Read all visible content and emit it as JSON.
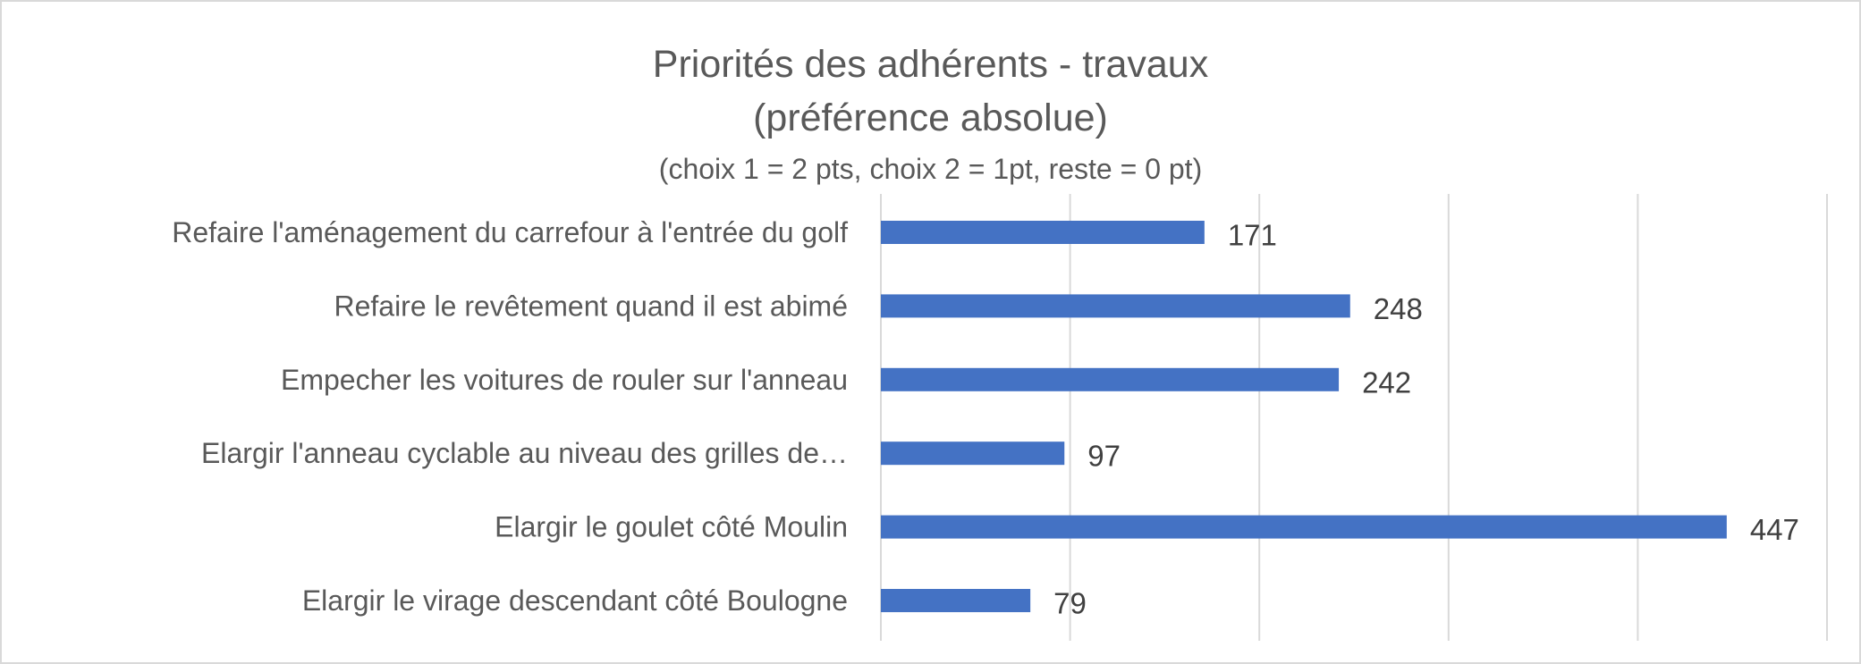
{
  "chart_data": {
    "type": "bar",
    "orientation": "horizontal",
    "title_lines": [
      "Priorités des adhérents - travaux",
      "(préférence absolue)"
    ],
    "subtitle": "(choix 1 = 2 pts, choix 2 = 1pt, reste = 0 pt)",
    "categories": [
      "Refaire l'aménagement du carrefour à l'entrée du golf",
      "Refaire le revêtement quand il est abimé",
      "Empecher les voitures de rouler sur l'anneau",
      "Elargir l'anneau cyclable au niveau des grilles de…",
      "Elargir le goulet côté Moulin",
      "Elargir le virage descendant côté Boulogne"
    ],
    "values": [
      171,
      248,
      242,
      97,
      447,
      79
    ],
    "xlim": [
      0,
      500
    ],
    "x_gridline_step": 100,
    "x_tick_labels_shown": false,
    "grid": true,
    "legend": "none",
    "data_labels": true,
    "bar_color": "#4472c4",
    "gridline_color": "#d9d9d9",
    "text_color": "#595959",
    "value_label_color": "#404040"
  }
}
